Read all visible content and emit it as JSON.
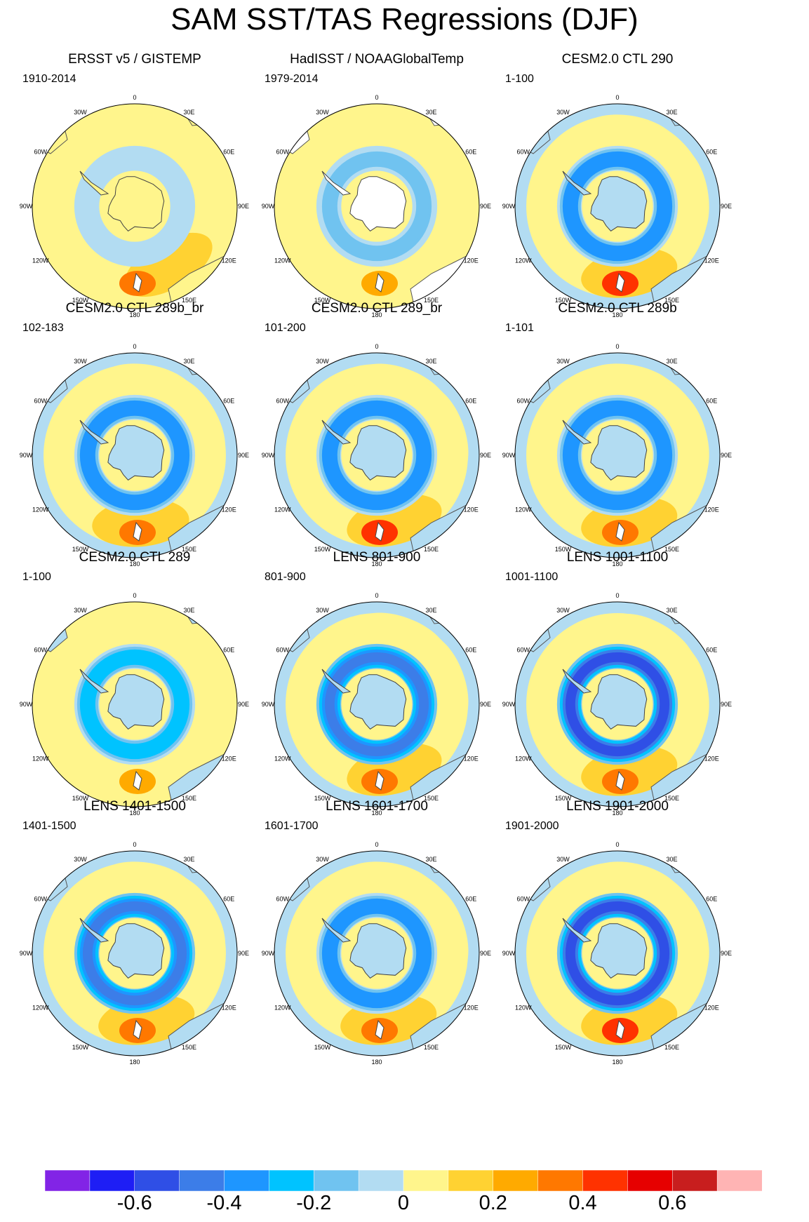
{
  "title": "SAM SST/TAS Regressions (DJF)",
  "lon_labels": [
    "0",
    "30E",
    "60E",
    "90E",
    "120E",
    "150E",
    "180",
    "150W",
    "120W",
    "90W",
    "60W",
    "30W"
  ],
  "colorbar": {
    "colors": [
      "#8224e6",
      "#1e1ef5",
      "#2f4fe6",
      "#3c7de8",
      "#1e96ff",
      "#00c3ff",
      "#70c3f0",
      "#b2dcf2",
      "#fff58c",
      "#ffd232",
      "#ffaa00",
      "#ff7800",
      "#ff3200",
      "#e60000",
      "#c81e1e",
      "#ffb4b4"
    ],
    "boundaries": [
      -0.7,
      -0.6,
      -0.5,
      -0.4,
      -0.3,
      -0.2,
      -0.1,
      0,
      0.1,
      0.2,
      0.3,
      0.4,
      0.5,
      0.6,
      0.7
    ],
    "labels": [
      "-0.6",
      "-0.4",
      "-0.2",
      "0",
      "0.2",
      "0.4",
      "0.6"
    ]
  },
  "chart_data": {
    "type": "polar-contour-map",
    "variable": "SAM SST/TAS regression coefficient",
    "season": "DJF",
    "projection": "South polar stereographic",
    "panels": [
      {
        "title": "ERSST v5 / GISTEMP",
        "period": "1910-2014",
        "ring_min": -0.1,
        "pacific_max": 0.4,
        "land_color": "#fff58c",
        "antarctica_missing": true,
        "warm_sectors": [
          10,
          70,
          150
        ]
      },
      {
        "title": "HadISST / NOAAGlobalTemp",
        "period": "1979-2014",
        "ring_min": -0.2,
        "pacific_max": 0.3,
        "land_color": "#ffffff",
        "antarctica_missing": true,
        "warm_sectors": [
          0,
          70,
          170
        ]
      },
      {
        "title": "CESM2.0 CTL 290",
        "period": "1-100",
        "ring_min": -0.4,
        "pacific_max": 0.5,
        "land_color": "#b2dcf2",
        "antarctica_missing": false,
        "warm_sectors": [
          10,
          80,
          170
        ]
      },
      {
        "title": "CESM2.0 CTL 289b_br",
        "period": "102-183",
        "ring_min": -0.4,
        "pacific_max": 0.4,
        "land_color": "#b2dcf2",
        "antarctica_missing": false,
        "warm_sectors": [
          10,
          60,
          175
        ]
      },
      {
        "title": "CESM2.0 CTL 289_br",
        "period": "101-200",
        "ring_min": -0.4,
        "pacific_max": 0.5,
        "land_color": "#b2dcf2",
        "antarctica_missing": false,
        "warm_sectors": [
          20,
          70,
          165
        ]
      },
      {
        "title": "CESM2.0 CTL 289b",
        "period": "1-101",
        "ring_min": -0.4,
        "pacific_max": 0.4,
        "land_color": "#b2dcf2",
        "antarctica_missing": false,
        "warm_sectors": [
          10,
          75,
          170
        ]
      },
      {
        "title": "CESM2.0 CTL 289",
        "period": "1-100",
        "ring_min": -0.3,
        "pacific_max": 0.3,
        "land_color": "#b2dcf2",
        "antarctica_missing": false,
        "warm_sectors": [
          20,
          60,
          175
        ]
      },
      {
        "title": "LENS 801-900",
        "period": "801-900",
        "ring_min": -0.5,
        "pacific_max": 0.4,
        "land_color": "#b2dcf2",
        "antarctica_missing": false,
        "warm_sectors": [
          20,
          70,
          165
        ]
      },
      {
        "title": "LENS 1001-1100",
        "period": "1001-1100",
        "ring_min": -0.6,
        "pacific_max": 0.4,
        "land_color": "#b2dcf2",
        "antarctica_missing": false,
        "warm_sectors": [
          30,
          80,
          170
        ]
      },
      {
        "title": "LENS 1401-1500",
        "period": "1401-1500",
        "ring_min": -0.5,
        "pacific_max": 0.4,
        "land_color": "#b2dcf2",
        "antarctica_missing": false,
        "warm_sectors": [
          10,
          60,
          170
        ]
      },
      {
        "title": "LENS 1601-1700",
        "period": "1601-1700",
        "ring_min": -0.4,
        "pacific_max": 0.4,
        "land_color": "#b2dcf2",
        "antarctica_missing": false,
        "warm_sectors": [
          10,
          70,
          170
        ]
      },
      {
        "title": "LENS 1901-2000",
        "period": "1901-2000",
        "ring_min": -0.6,
        "pacific_max": 0.5,
        "land_color": "#b2dcf2",
        "antarctica_missing": false,
        "warm_sectors": [
          15,
          75,
          170
        ]
      }
    ]
  }
}
